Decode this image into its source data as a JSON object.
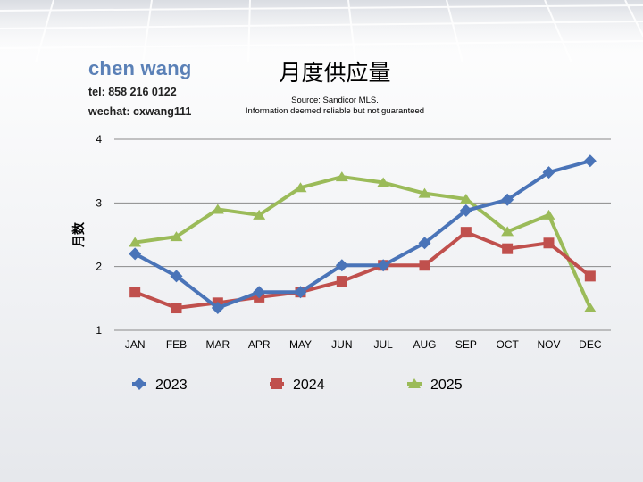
{
  "brand": {
    "name": "chen wang",
    "tel": "tel: 858 216 0122",
    "wechat": "wechat: cxwang111"
  },
  "title": "月度供应量",
  "source": {
    "line1": "Source: Sandicor MLS.",
    "line2": "Information deemed reliable but not guaranteed"
  },
  "chart_data": {
    "type": "line",
    "title": "月度供应量",
    "ylabel": "月数",
    "xlabel": "",
    "categories": [
      "JAN",
      "FEB",
      "MAR",
      "APR",
      "MAY",
      "JUN",
      "JUL",
      "AUG",
      "SEP",
      "OCT",
      "NOV",
      "DEC"
    ],
    "ylim": [
      1,
      4
    ],
    "yticks": [
      1,
      2,
      3,
      4
    ],
    "grid": true,
    "legend": "bottom",
    "series": [
      {
        "name": "2023",
        "color": "#4a74b8",
        "marker": "diamond",
        "values": [
          2.2,
          1.85,
          1.35,
          1.6,
          1.6,
          2.02,
          2.02,
          2.37,
          2.88,
          3.05,
          3.48,
          3.66
        ]
      },
      {
        "name": "2024",
        "color": "#c0504d",
        "marker": "square",
        "values": [
          1.6,
          1.35,
          1.43,
          1.52,
          1.6,
          1.77,
          2.02,
          2.02,
          2.54,
          2.28,
          2.37,
          1.85
        ]
      },
      {
        "name": "2025",
        "color": "#9bbb59",
        "marker": "triangle",
        "values": [
          2.38,
          2.47,
          2.9,
          2.81,
          3.24,
          3.41,
          3.32,
          3.15,
          3.06,
          2.55,
          2.81,
          1.35
        ]
      }
    ]
  }
}
